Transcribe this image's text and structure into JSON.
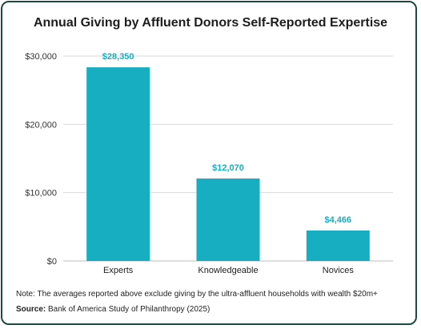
{
  "chart_data": {
    "type": "bar",
    "title": "Annual Giving by Affluent Donors Self-Reported Expertise",
    "categories": [
      "Experts",
      "Knowledgeable",
      "Novices"
    ],
    "values": [
      28350,
      12070,
      4466
    ],
    "data_labels": [
      "$28,350",
      "$12,070",
      "$4,466"
    ],
    "ylim": [
      0,
      30000
    ],
    "yticks": [
      0,
      10000,
      20000,
      30000
    ],
    "ytick_labels": [
      "$0",
      "$10,000",
      "$20,000",
      "$30,000"
    ],
    "xlabel": "",
    "ylabel": "",
    "grid": true,
    "legend": "none",
    "bar_color": "#16aec0",
    "label_color": "#16aec0",
    "grid_color": "#d9d9d9"
  },
  "footer": {
    "note": "Note: The averages reported above exclude giving by the ultra-affluent households with wealth $20m+",
    "source_label": "Source:",
    "source_text": " Bank of America Study of Philanthropy (2025)"
  }
}
